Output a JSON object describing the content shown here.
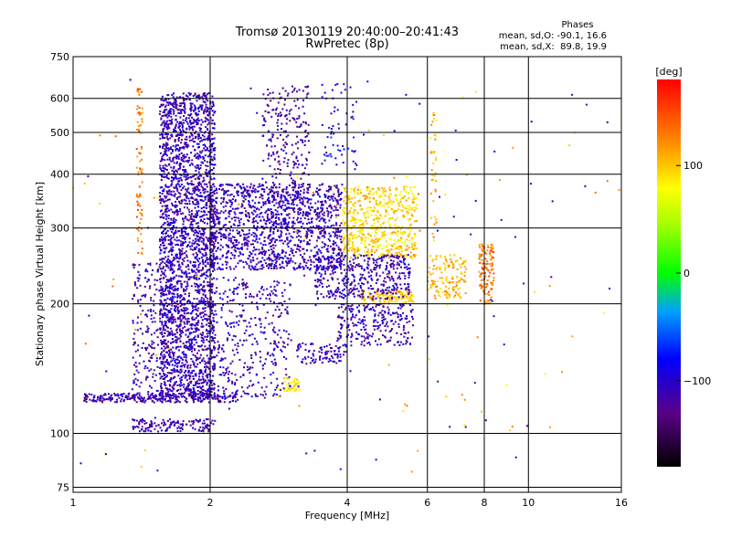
{
  "header": {
    "title_line1": "Tromsø 20130119 20:40:00–20:41:43",
    "title_line2": "RwPretec (8p)"
  },
  "stats": {
    "heading": "Phases",
    "line_o": "mean, sd,O: -90.1, 16.6",
    "line_x": "mean, sd,X:  89.8, 19.9"
  },
  "chart_data": {
    "type": "scatter",
    "xlabel": "Frequency [MHz]",
    "ylabel": "Stationary phase Virtual Height [km]",
    "x_scale": "log",
    "y_scale": "log",
    "xlim": [
      1,
      16
    ],
    "ylim": [
      73,
      750
    ],
    "x_ticks": [
      1,
      2,
      4,
      6,
      8,
      10,
      16
    ],
    "y_ticks": [
      75,
      100,
      200,
      300,
      400,
      500,
      600,
      750
    ],
    "grid": true,
    "colorbar": {
      "label": "[deg]",
      "range": [
        -180,
        180
      ],
      "ticks": [
        100,
        0,
        -100
      ],
      "colormap": "rainbow"
    },
    "clusters": [
      {
        "f": [
          1.55,
          2.05
        ],
        "h": [
          120,
          620
        ],
        "phase": -110,
        "density": 2600
      },
      {
        "f": [
          1.35,
          1.65
        ],
        "h": [
          120,
          250
        ],
        "phase": -110,
        "density": 260
      },
      {
        "f": [
          1.05,
          2.3
        ],
        "h": [
          118,
          124
        ],
        "phase": -115,
        "density": 260
      },
      {
        "f": [
          1.35,
          2.05
        ],
        "h": [
          101,
          108
        ],
        "phase": -115,
        "density": 140
      },
      {
        "f": [
          2.0,
          3.9
        ],
        "h": [
          240,
          380
        ],
        "phase": -110,
        "density": 1300
      },
      {
        "f": [
          2.0,
          3.0
        ],
        "h": [
          120,
          230
        ],
        "phase": -110,
        "density": 380
      },
      {
        "f": [
          2.6,
          3.3
        ],
        "h": [
          330,
          640
        ],
        "phase": -115,
        "density": 260
      },
      {
        "f": [
          3.5,
          4.2
        ],
        "h": [
          400,
          650
        ],
        "phase": -90,
        "density": 60
      },
      {
        "f": [
          3.9,
          5.7
        ],
        "h": [
          255,
          375
        ],
        "phase": 95,
        "density": 600
      },
      {
        "f": [
          4.3,
          5.6
        ],
        "h": [
          200,
          215
        ],
        "phase": 100,
        "density": 130
      },
      {
        "f": [
          3.4,
          5.5
        ],
        "h": [
          205,
          260
        ],
        "phase": -110,
        "density": 420
      },
      {
        "f": [
          3.8,
          5.6
        ],
        "h": [
          160,
          200
        ],
        "phase": -110,
        "density": 240
      },
      {
        "f": [
          3.1,
          4.0
        ],
        "h": [
          145,
          162
        ],
        "phase": -110,
        "density": 90
      },
      {
        "f": [
          6.0,
          7.3
        ],
        "h": [
          205,
          260
        ],
        "phase": 110,
        "density": 140
      },
      {
        "f": [
          7.8,
          8.4
        ],
        "h": [
          200,
          275
        ],
        "phase": 130,
        "density": 120
      },
      {
        "f": [
          2.9,
          3.15
        ],
        "h": [
          125,
          135
        ],
        "phase": 90,
        "density": 40
      },
      {
        "f": [
          1.38,
          1.42
        ],
        "h": [
          260,
          650
        ],
        "phase": 130,
        "density": 80
      },
      {
        "f": [
          6.1,
          6.3
        ],
        "h": [
          270,
          560
        ],
        "phase": 110,
        "density": 40
      },
      {
        "f": [
          1.0,
          16.0
        ],
        "h": [
          80,
          700
        ],
        "phase": -40,
        "density": 160
      }
    ]
  }
}
